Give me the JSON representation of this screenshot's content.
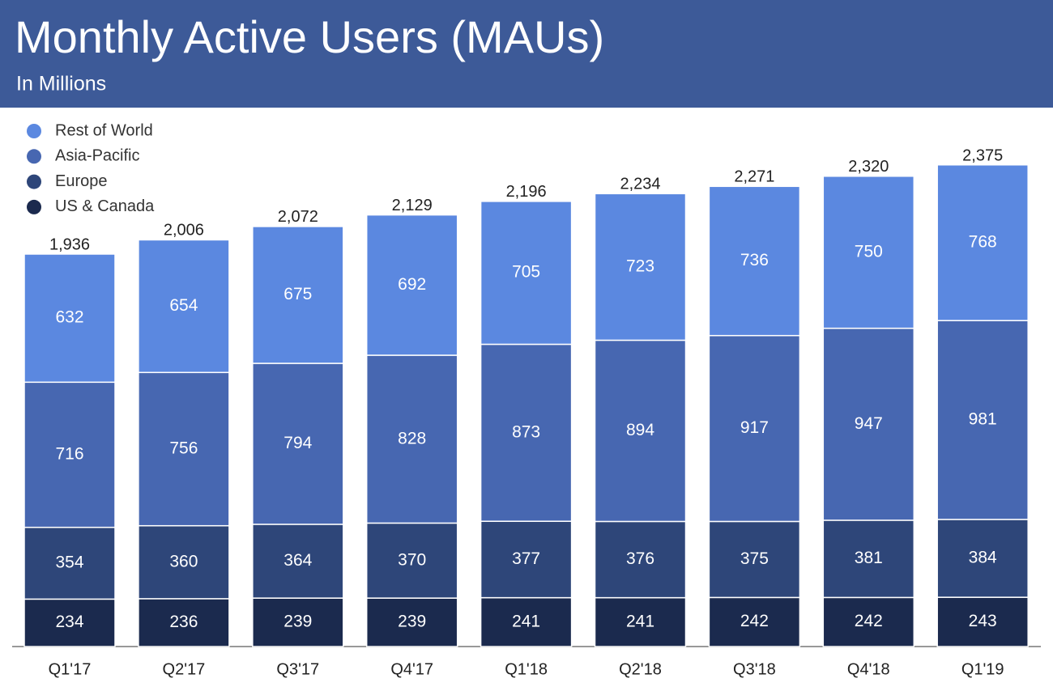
{
  "chart_data": {
    "type": "stacked_bar",
    "title": "Monthly Active Users (MAUs)",
    "subtitle": "In Millions",
    "categories": [
      "Q1'17",
      "Q2'17",
      "Q3'17",
      "Q4'17",
      "Q1'18",
      "Q2'18",
      "Q3'18",
      "Q4'18",
      "Q1'19"
    ],
    "series": [
      {
        "name": "US & Canada",
        "color": "#1b2a4e",
        "values": [
          234,
          236,
          239,
          239,
          241,
          241,
          242,
          242,
          243
        ]
      },
      {
        "name": "Europe",
        "color": "#2e4679",
        "values": [
          354,
          360,
          364,
          370,
          377,
          376,
          375,
          381,
          384
        ]
      },
      {
        "name": "Asia-Pacific",
        "color": "#4767b1",
        "values": [
          716,
          756,
          794,
          828,
          873,
          894,
          917,
          947,
          981
        ]
      },
      {
        "name": "Rest of World",
        "color": "#5b88e0",
        "values": [
          632,
          654,
          675,
          692,
          705,
          723,
          736,
          750,
          768
        ]
      }
    ],
    "totals": {
      "values": [
        1936,
        2006,
        2072,
        2129,
        2196,
        2234,
        2271,
        2320,
        2375
      ],
      "value_labels": [
        "1,936",
        "2,006",
        "2,072",
        "2,129",
        "2,196",
        "2,234",
        "2,271",
        "2,320",
        "2,375"
      ]
    },
    "legend": "top-left"
  }
}
